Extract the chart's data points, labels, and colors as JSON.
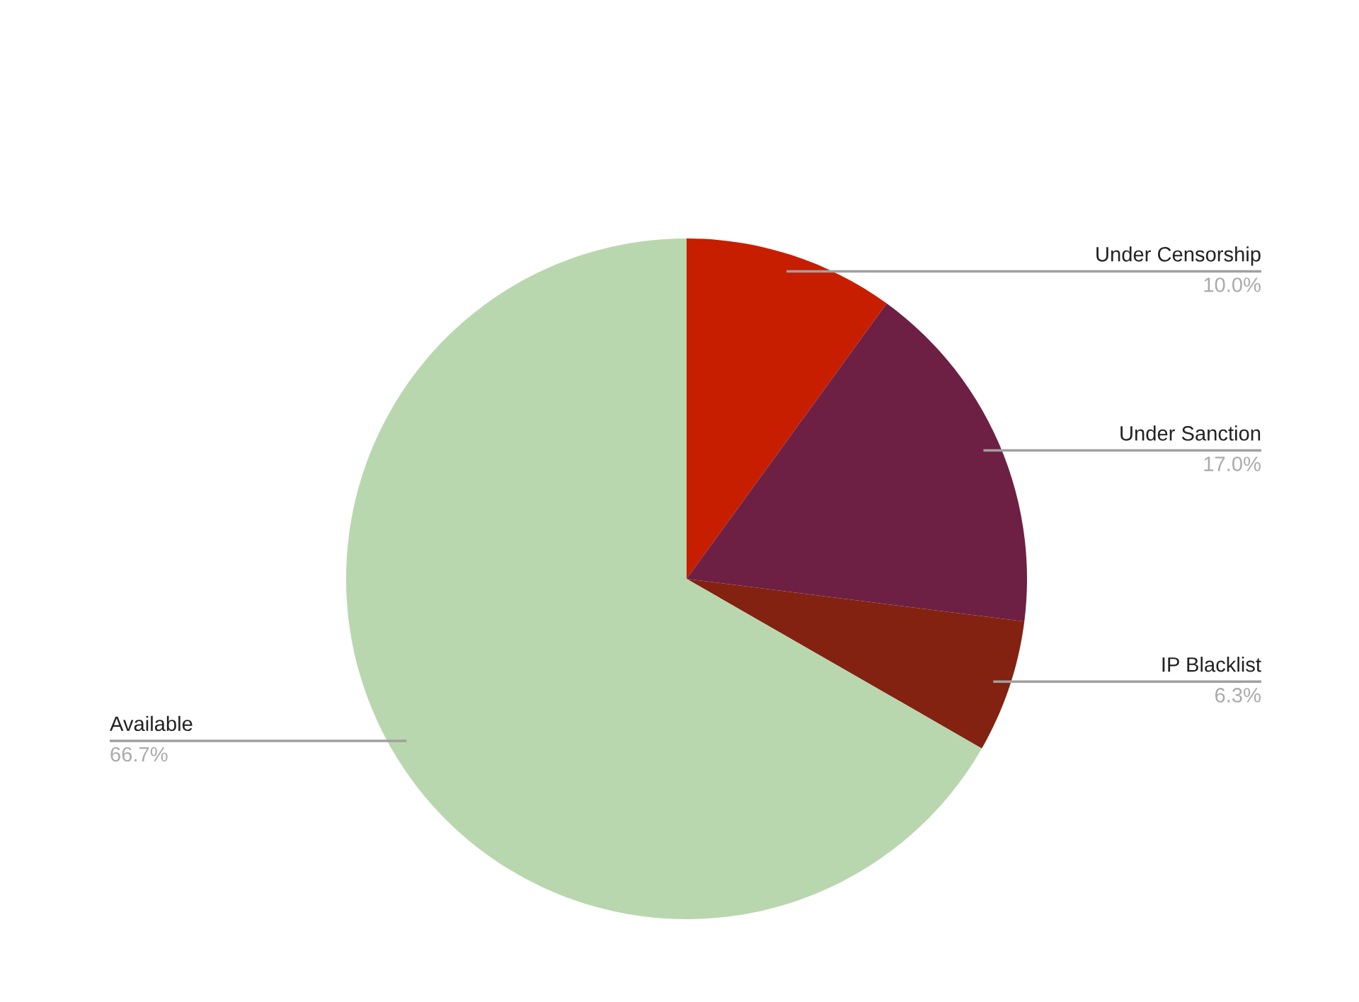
{
  "chart_data": {
    "type": "pie",
    "categories": [
      "Under Censorship",
      "Under Sanction",
      "IP Blacklist",
      "Available"
    ],
    "values": [
      10.0,
      17.0,
      6.3,
      66.7
    ],
    "value_labels": [
      "10.0%",
      "17.0%",
      "6.3%",
      "66.7%"
    ],
    "colors": [
      "#c81e00",
      "#6d1f44",
      "#832210",
      "#b9d7ae"
    ],
    "legend": false
  }
}
